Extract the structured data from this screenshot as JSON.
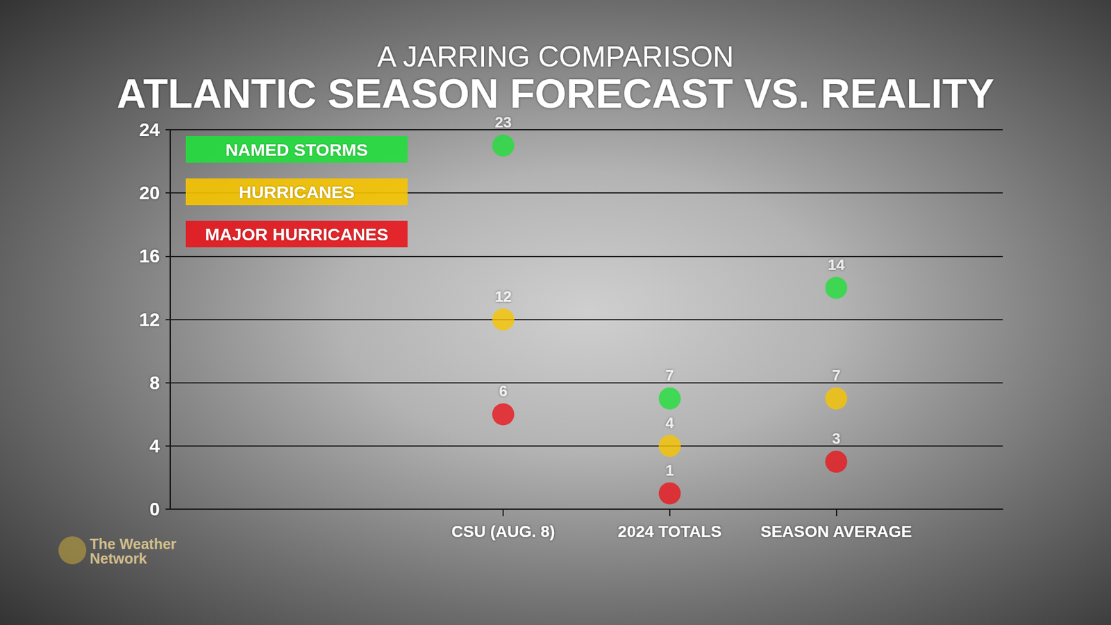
{
  "chart_data": {
    "type": "scatter",
    "subtitle": "A JARRING COMPARISON",
    "title": "ATLANTIC SEASON FORECAST VS. REALITY",
    "categories": [
      null,
      null,
      "CSU (AUG. 8)",
      "2024 TOTALS",
      "SEASON AVERAGE",
      null
    ],
    "series": [
      {
        "name": "NAMED STORMS",
        "color": "#22de3c",
        "values": [
          null,
          null,
          23,
          7,
          14,
          null
        ]
      },
      {
        "name": "HURRICANES",
        "color": "#f6c400",
        "values": [
          null,
          null,
          12,
          4,
          7,
          null
        ]
      },
      {
        "name": "MAJOR HURRICANES",
        "color": "#e8161c",
        "values": [
          null,
          null,
          6,
          1,
          3,
          null
        ]
      }
    ],
    "ylim": [
      0,
      24
    ],
    "yticks": [
      0,
      4,
      8,
      12,
      16,
      20,
      24
    ],
    "grid": true,
    "legend": "upper left",
    "data_labels": true,
    "marker": "circle",
    "source": "The Weather Network"
  }
}
